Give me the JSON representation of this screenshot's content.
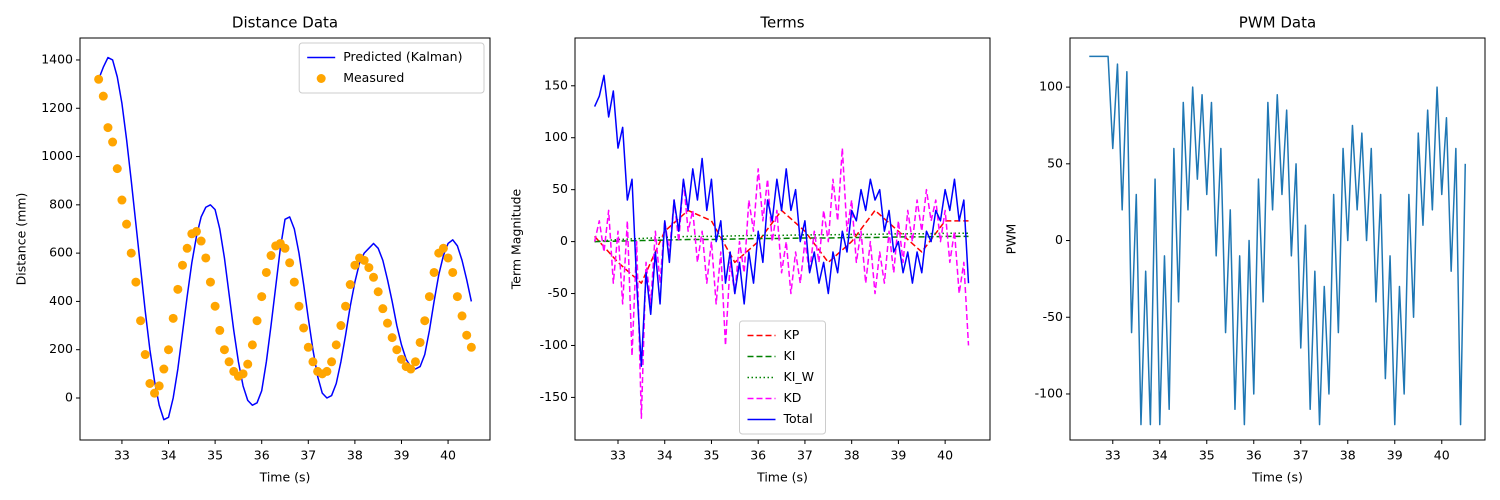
{
  "chart_data": [
    {
      "type": "line",
      "title": "Distance Data",
      "xlabel": "Time (s)",
      "ylabel": "Distance (mm)",
      "x": [
        32.5,
        32.6,
        32.7,
        32.8,
        32.9,
        33.0,
        33.1,
        33.2,
        33.3,
        33.4,
        33.5,
        33.6,
        33.7,
        33.8,
        33.9,
        34.0,
        34.1,
        34.2,
        34.3,
        34.4,
        34.5,
        34.6,
        34.7,
        34.8,
        34.9,
        35.0,
        35.1,
        35.2,
        35.3,
        35.4,
        35.5,
        35.6,
        35.7,
        35.8,
        35.9,
        36.0,
        36.1,
        36.2,
        36.3,
        36.4,
        36.5,
        36.6,
        36.7,
        36.8,
        36.9,
        37.0,
        37.1,
        37.2,
        37.3,
        37.4,
        37.5,
        37.6,
        37.7,
        37.8,
        37.9,
        38.0,
        38.1,
        38.2,
        38.3,
        38.4,
        38.5,
        38.6,
        38.7,
        38.8,
        38.9,
        39.0,
        39.1,
        39.2,
        39.3,
        39.4,
        39.5,
        39.6,
        39.7,
        39.8,
        39.9,
        40.0,
        40.1,
        40.2,
        40.3,
        40.4,
        40.5
      ],
      "xlim": [
        32.1,
        40.9
      ],
      "xticks": [
        33,
        34,
        35,
        36,
        37,
        38,
        39,
        40
      ],
      "ylim": [
        -174,
        1491
      ],
      "yticks": [
        0,
        200,
        400,
        600,
        800,
        1000,
        1200,
        1400
      ],
      "legend": "upper right",
      "series": [
        {
          "name": "Predicted (Kalman)",
          "color": "#0000ff",
          "style": "solid",
          "values": [
            1320,
            1370,
            1410,
            1400,
            1330,
            1220,
            1070,
            900,
            720,
            540,
            360,
            200,
            70,
            -30,
            -90,
            -80,
            0,
            120,
            270,
            420,
            560,
            670,
            750,
            790,
            800,
            780,
            700,
            580,
            430,
            280,
            150,
            50,
            -10,
            -30,
            -20,
            30,
            150,
            300,
            460,
            620,
            740,
            750,
            700,
            600,
            470,
            330,
            200,
            90,
            20,
            0,
            10,
            60,
            150,
            260,
            380,
            480,
            560,
            600,
            620,
            640,
            620,
            570,
            490,
            400,
            300,
            220,
            160,
            130,
            120,
            130,
            180,
            280,
            400,
            510,
            590,
            640,
            655,
            630,
            570,
            490,
            400
          ]
        },
        {
          "name": "Measured",
          "color": "#ffa500",
          "style": "scatter",
          "values": [
            1320,
            1250,
            1120,
            1060,
            950,
            820,
            720,
            600,
            480,
            320,
            180,
            60,
            20,
            50,
            120,
            200,
            330,
            450,
            550,
            620,
            680,
            690,
            650,
            580,
            480,
            380,
            280,
            200,
            150,
            110,
            90,
            100,
            140,
            220,
            320,
            420,
            520,
            590,
            630,
            640,
            620,
            560,
            480,
            380,
            290,
            210,
            150,
            110,
            100,
            110,
            150,
            220,
            300,
            380,
            470,
            550,
            580,
            570,
            540,
            500,
            440,
            370,
            310,
            250,
            200,
            160,
            130,
            120,
            150,
            230,
            320,
            420,
            520,
            600,
            620,
            580,
            520,
            420,
            340,
            260,
            210
          ]
        }
      ]
    },
    {
      "type": "line",
      "title": "Terms",
      "xlabel": "Time (s)",
      "ylabel": "Term Magnitude",
      "x": [
        32.5,
        32.6,
        32.7,
        32.8,
        32.9,
        33.0,
        33.1,
        33.2,
        33.3,
        33.4,
        33.5,
        33.6,
        33.7,
        33.8,
        33.9,
        34.0,
        34.1,
        34.2,
        34.3,
        34.4,
        34.5,
        34.6,
        34.7,
        34.8,
        34.9,
        35.0,
        35.1,
        35.2,
        35.3,
        35.4,
        35.5,
        35.6,
        35.7,
        35.8,
        35.9,
        36.0,
        36.1,
        36.2,
        36.3,
        36.4,
        36.5,
        36.6,
        36.7,
        36.8,
        36.9,
        37.0,
        37.1,
        37.2,
        37.3,
        37.4,
        37.5,
        37.6,
        37.7,
        37.8,
        37.9,
        38.0,
        38.1,
        38.2,
        38.3,
        38.4,
        38.5,
        38.6,
        38.7,
        38.8,
        38.9,
        39.0,
        39.1,
        39.2,
        39.3,
        39.4,
        39.5,
        39.6,
        39.7,
        39.8,
        39.9,
        40.0,
        40.1,
        40.2,
        40.3,
        40.4,
        40.5
      ],
      "xlim": [
        32.08,
        40.96
      ],
      "xticks": [
        33,
        34,
        35,
        36,
        37,
        38,
        39,
        40
      ],
      "ylim": [
        -191,
        196
      ],
      "yticks": [
        -150,
        -100,
        -50,
        0,
        50,
        100,
        150
      ],
      "legend": "lower center",
      "series": [
        {
          "name": "KP",
          "color": "#ff0000",
          "style": "dashed",
          "x": [
            32.5,
            33.0,
            33.5,
            34.0,
            34.5,
            35.0,
            35.5,
            36.0,
            36.5,
            37.0,
            37.5,
            38.0,
            38.5,
            39.0,
            39.5,
            40.0,
            40.5
          ],
          "values": [
            5,
            -20,
            -40,
            10,
            30,
            20,
            -20,
            0,
            30,
            10,
            -20,
            0,
            30,
            10,
            -10,
            20,
            20
          ]
        },
        {
          "name": "KI",
          "color": "#008000",
          "style": "dashed",
          "x": [
            32.5,
            33.0,
            33.5,
            34.0,
            34.5,
            35.0,
            35.5,
            36.0,
            36.5,
            37.0,
            37.5,
            38.0,
            38.5,
            39.0,
            39.5,
            40.0,
            40.5
          ],
          "values": [
            0,
            0.5,
            1,
            1.5,
            2,
            2,
            2.5,
            3,
            3,
            3.5,
            3.5,
            4,
            4,
            4.5,
            4.5,
            5,
            5
          ]
        },
        {
          "name": "KI_W",
          "color": "#008000",
          "style": "dotted",
          "x": [
            32.5,
            33.0,
            33.5,
            34.0,
            34.5,
            35.0,
            35.5,
            36.0,
            36.5,
            37.0,
            37.5,
            38.0,
            38.5,
            39.0,
            39.5,
            40.0,
            40.5
          ],
          "values": [
            0,
            2,
            3,
            4,
            5,
            5,
            5.5,
            6,
            6,
            6.5,
            6.5,
            7,
            7,
            7.5,
            7.5,
            8,
            8
          ]
        },
        {
          "name": "KD",
          "color": "#ff00ff",
          "style": "dashed",
          "values": [
            0,
            20,
            -10,
            30,
            -40,
            10,
            -60,
            20,
            -110,
            0,
            -170,
            -20,
            -60,
            10,
            -40,
            20,
            -10,
            40,
            0,
            60,
            10,
            30,
            -20,
            10,
            -40,
            0,
            -60,
            -10,
            -100,
            -20,
            -50,
            0,
            -30,
            40,
            10,
            70,
            20,
            60,
            0,
            30,
            -30,
            0,
            -50,
            -10,
            -40,
            0,
            -30,
            10,
            -20,
            30,
            0,
            60,
            20,
            90,
            10,
            40,
            -20,
            10,
            -40,
            0,
            -50,
            -10,
            -40,
            10,
            -30,
            20,
            -20,
            30,
            0,
            40,
            10,
            50,
            20,
            40,
            0,
            30,
            -20,
            10,
            -50,
            -20,
            -100
          ]
        },
        {
          "name": "Total",
          "color": "#0000ff",
          "style": "solid",
          "values": [
            130,
            140,
            160,
            120,
            145,
            90,
            110,
            40,
            60,
            -40,
            -120,
            -30,
            -70,
            -10,
            -60,
            20,
            -20,
            40,
            10,
            60,
            30,
            70,
            40,
            80,
            30,
            60,
            0,
            20,
            -40,
            -10,
            -50,
            -20,
            -60,
            -10,
            -40,
            10,
            -20,
            40,
            20,
            60,
            30,
            70,
            30,
            50,
            0,
            20,
            -30,
            -10,
            -40,
            -20,
            -50,
            -10,
            -30,
            10,
            -10,
            30,
            20,
            50,
            30,
            60,
            40,
            50,
            10,
            30,
            -10,
            0,
            -30,
            -10,
            -40,
            -10,
            -30,
            10,
            0,
            30,
            20,
            50,
            30,
            60,
            20,
            40,
            -40
          ]
        }
      ]
    },
    {
      "type": "line",
      "title": "PWM Data",
      "xlabel": "Time (s)",
      "ylabel": "PWM",
      "x": [
        32.5,
        32.6,
        32.7,
        32.8,
        32.9,
        33.0,
        33.1,
        33.2,
        33.3,
        33.4,
        33.5,
        33.6,
        33.7,
        33.8,
        33.9,
        34.0,
        34.1,
        34.2,
        34.3,
        34.4,
        34.5,
        34.6,
        34.7,
        34.8,
        34.9,
        35.0,
        35.1,
        35.2,
        35.3,
        35.4,
        35.5,
        35.6,
        35.7,
        35.8,
        35.9,
        36.0,
        36.1,
        36.2,
        36.3,
        36.4,
        36.5,
        36.6,
        36.7,
        36.8,
        36.9,
        37.0,
        37.1,
        37.2,
        37.3,
        37.4,
        37.5,
        37.6,
        37.7,
        37.8,
        37.9,
        38.0,
        38.1,
        38.2,
        38.3,
        38.4,
        38.5,
        38.6,
        38.7,
        38.8,
        38.9,
        39.0,
        39.1,
        39.2,
        39.3,
        39.4,
        39.5,
        39.6,
        39.7,
        39.8,
        39.9,
        40.0,
        40.1,
        40.2,
        40.3,
        40.4,
        40.5
      ],
      "xlim": [
        32.09,
        40.92
      ],
      "xticks": [
        33,
        34,
        35,
        36,
        37,
        38,
        39,
        40
      ],
      "ylim": [
        -130,
        132
      ],
      "yticks": [
        -100,
        -50,
        0,
        50,
        100
      ],
      "series": [
        {
          "color": "#1f77b4",
          "style": "solid",
          "values": [
            120,
            120,
            120,
            120,
            120,
            60,
            115,
            20,
            110,
            -60,
            30,
            -120,
            -20,
            -120,
            40,
            -120,
            -10,
            -110,
            60,
            -40,
            90,
            20,
            100,
            40,
            95,
            30,
            90,
            -10,
            60,
            -60,
            20,
            -110,
            -10,
            -120,
            0,
            -100,
            40,
            -40,
            90,
            20,
            95,
            30,
            85,
            -10,
            50,
            -70,
            10,
            -110,
            -20,
            -120,
            -30,
            -100,
            30,
            -60,
            60,
            0,
            75,
            20,
            70,
            0,
            60,
            -40,
            30,
            -90,
            -10,
            -120,
            -30,
            -100,
            30,
            -50,
            70,
            10,
            85,
            20,
            100,
            30,
            80,
            -20,
            60,
            -120,
            50
          ]
        }
      ]
    }
  ]
}
